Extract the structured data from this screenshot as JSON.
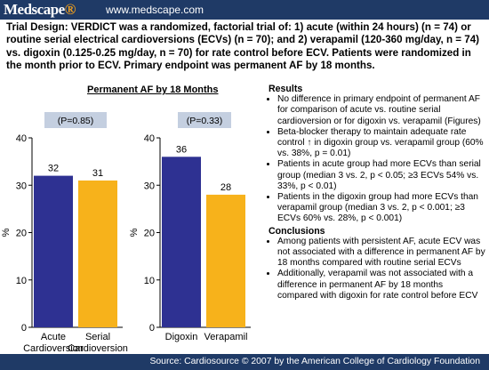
{
  "header": {
    "logo": "Medscape",
    "site": "www.medscape.com"
  },
  "intro": "Trial Design: VERDICT was a randomized, factorial trial of: 1) acute (within 24 hours) (n = 74) or routine serial electrical cardioversions (ECVs) (n = 70); and 2) verapamil (120-360 mg/day, n = 74) vs. digoxin (0.125-0.25 mg/day, n = 70) for rate control before ECV. Patients were randomized in the month prior to ECV. Primary endpoint was permanent AF by 18 months.",
  "chart_title": "Permanent AF by 18 Months",
  "chart_data": [
    {
      "type": "bar",
      "categories": [
        "Acute Cardioversion",
        "Serial Cardioversion"
      ],
      "category_lines": [
        [
          "Acute",
          "Cardioversion"
        ],
        [
          "Serial",
          "Cardioversion"
        ]
      ],
      "values": [
        32,
        31
      ],
      "value_labels": [
        "32",
        "31"
      ],
      "colors": [
        "#2e3192",
        "#f7b21b"
      ],
      "pvalue": "(P=0.85)",
      "ylabel": "%",
      "ylim": [
        0,
        40
      ],
      "yticks": [
        0,
        10,
        20,
        30,
        40
      ]
    },
    {
      "type": "bar",
      "categories": [
        "Digoxin",
        "Verapamil"
      ],
      "category_lines": [
        [
          "Digoxin"
        ],
        [
          "Verapamil"
        ]
      ],
      "values": [
        36,
        28
      ],
      "value_labels": [
        "36",
        "28"
      ],
      "colors": [
        "#2e3192",
        "#f7b21b"
      ],
      "pvalue": "(P=0.33)",
      "ylabel": "%",
      "ylim": [
        0,
        40
      ],
      "yticks": [
        0,
        10,
        20,
        30,
        40
      ]
    }
  ],
  "results": {
    "heading": "Results",
    "items": [
      "No difference in primary endpoint of permanent AF for comparison of acute vs. routine serial cardioversion or for digoxin vs. verapamil (Figures)",
      "Beta-blocker therapy to maintain adequate rate control ↑ in digoxin group vs. verapamil group (60% vs. 38%, p = 0.01)",
      "Patients in acute group had more ECVs than serial group (median 3 vs. 2, p < 0.05; ≥3 ECVs 54% vs. 33%, p < 0.01)",
      "Patients in the digoxin group had more ECVs than verapamil group (median 3 vs. 2, p < 0.001; ≥3 ECVs 60% vs. 28%, p < 0.001)"
    ]
  },
  "conclusions": {
    "heading": "Conclusions",
    "items": [
      "Among patients with persistent AF, acute ECV was not associated with a difference in permanent AF by 18 months compared with routine serial ECVs",
      "Additionally, verapamil was not associated with a difference in permanent AF by 18 months compared with digoxin for rate control before ECV"
    ]
  },
  "footer": "Source: Cardiosource © 2007 by the American College of Cardiology Foundation",
  "colors": {
    "brand_bar": "#1f3a66",
    "bar_blue": "#2e3192",
    "bar_yellow": "#f7b21b",
    "pvalue_box": "#c4cfe0"
  }
}
